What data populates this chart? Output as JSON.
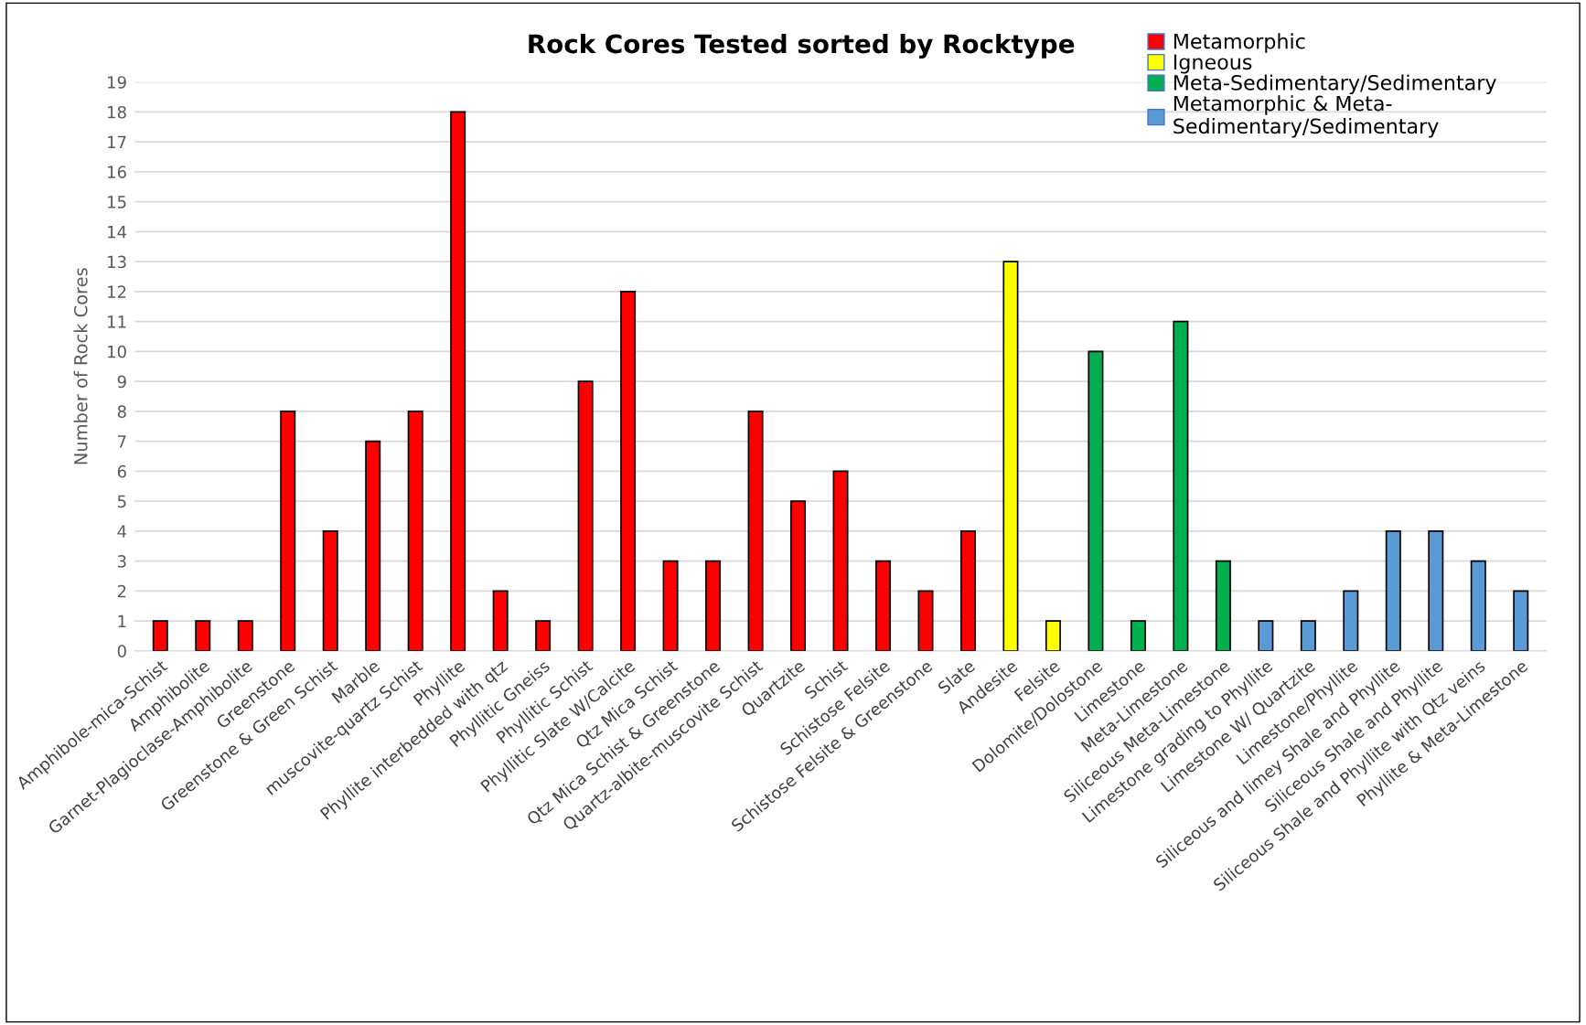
{
  "chart_data": {
    "type": "bar",
    "title": "Rock Cores Tested sorted by Rocktype",
    "ylabel": "Number of Rock Cores",
    "categories": [
      "Amphibole-mica-Schist",
      "Amphibolite",
      "Garnet-Plagioclase-Amphibolite",
      "Greenstone",
      "Greenstone & Green Schist",
      "Marble",
      "muscovite-quartz Schist",
      "Phyllite",
      "Phyllite interbedded with qtz",
      "Phyllitic Gneiss",
      "Phyllitic Schist",
      "Phyllitic Slate W/Calcite",
      "Qtz Mica Schist",
      "Qtz Mica Schist & Greenstone",
      "Quartz-albite-muscovite Schist",
      "Quartzite",
      "Schist",
      "Schistose Felsite",
      "Schistose Felsite & Greenstone",
      "Slate",
      "Andesite",
      "Felsite",
      "Dolomite/Dolostone",
      "Limestone",
      "Meta-Limestone",
      "Siliceous Meta-Limestone",
      "Limestone grading to Phyllite",
      "Limestone W/ Quartzite",
      "Limestone/Phyllite",
      "Siliceous and limey Shale and Phyllite",
      "Siliceous Shale and Phyllite",
      "Siliceous Shale and Phyllite with Qtz veins",
      "Phyllite & Meta-Limestone"
    ],
    "series": [
      {
        "name": "Metamorphic",
        "color": "#ff0000",
        "values": [
          1,
          1,
          1,
          8,
          4,
          7,
          8,
          18,
          2,
          1,
          9,
          12,
          3,
          3,
          8,
          5,
          6,
          3,
          2,
          4,
          null,
          null,
          null,
          null,
          null,
          null,
          null,
          null,
          null,
          null,
          null,
          null,
          null
        ]
      },
      {
        "name": "Igneous",
        "color": "#ffff00",
        "values": [
          null,
          null,
          null,
          null,
          null,
          null,
          null,
          null,
          null,
          null,
          null,
          null,
          null,
          null,
          null,
          null,
          null,
          null,
          null,
          null,
          13,
          1,
          null,
          null,
          null,
          null,
          null,
          null,
          null,
          null,
          null,
          null,
          null
        ]
      },
      {
        "name": "Meta-Sedimentary/Sedimentary",
        "color": "#00b050",
        "values": [
          null,
          null,
          null,
          null,
          null,
          null,
          null,
          null,
          null,
          null,
          null,
          null,
          null,
          null,
          null,
          null,
          null,
          null,
          null,
          null,
          null,
          null,
          10,
          1,
          11,
          3,
          null,
          null,
          null,
          null,
          null,
          null,
          null
        ]
      },
      {
        "name": "Metamorphic & Meta-\nSedimentary/Sedimentary",
        "color": "#5b9bd5",
        "values": [
          null,
          null,
          null,
          null,
          null,
          null,
          null,
          null,
          null,
          null,
          null,
          null,
          null,
          null,
          null,
          null,
          null,
          null,
          null,
          null,
          null,
          null,
          null,
          null,
          null,
          null,
          1,
          1,
          2,
          4,
          4,
          3,
          2
        ]
      }
    ],
    "ylim": [
      0,
      19
    ],
    "yticks": [
      0,
      1,
      2,
      3,
      4,
      5,
      6,
      7,
      8,
      9,
      10,
      11,
      12,
      13,
      14,
      15,
      16,
      17,
      18,
      19
    ],
    "grid": "y",
    "legend": "top right"
  }
}
